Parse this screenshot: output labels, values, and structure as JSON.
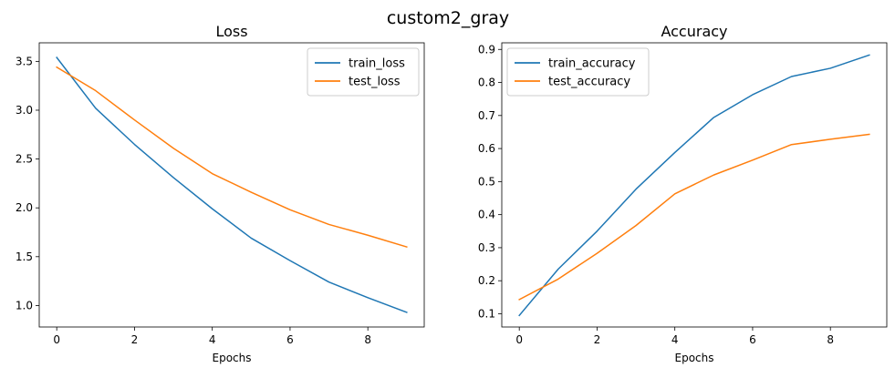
{
  "figure": {
    "title": "custom2_gray"
  },
  "chart_data": [
    {
      "type": "line",
      "title": "Loss",
      "xlabel": "Epochs",
      "ylabel": "",
      "x": [
        0,
        1,
        2,
        3,
        4,
        5,
        6,
        7,
        8,
        9
      ],
      "xlim": [
        -0.45,
        9.45
      ],
      "ylim": [
        0.78,
        3.69
      ],
      "xticks": [
        0,
        2,
        4,
        6,
        8
      ],
      "yticks": [
        1.0,
        1.5,
        2.0,
        2.5,
        3.0,
        3.5
      ],
      "ytick_labels": [
        "1.0",
        "1.5",
        "2.0",
        "2.5",
        "3.0",
        "3.5"
      ],
      "grid": false,
      "legend": "upper-right",
      "series": [
        {
          "name": "train_loss",
          "color": "#1f77b4",
          "values": [
            3.54,
            3.02,
            2.65,
            2.31,
            1.99,
            1.69,
            1.46,
            1.24,
            1.08,
            0.93
          ]
        },
        {
          "name": "test_loss",
          "color": "#ff7f0e",
          "values": [
            3.44,
            3.2,
            2.9,
            2.61,
            2.35,
            2.16,
            1.98,
            1.83,
            1.72,
            1.6
          ]
        }
      ]
    },
    {
      "type": "line",
      "title": "Accuracy",
      "xlabel": "Epochs",
      "ylabel": "",
      "x": [
        0,
        1,
        2,
        3,
        4,
        5,
        6,
        7,
        8,
        9
      ],
      "xlim": [
        -0.45,
        9.45
      ],
      "ylim": [
        0.06,
        0.92
      ],
      "xticks": [
        0,
        2,
        4,
        6,
        8
      ],
      "yticks": [
        0.1,
        0.2,
        0.3,
        0.4,
        0.5,
        0.6,
        0.7,
        0.8,
        0.9
      ],
      "ytick_labels": [
        "0.1",
        "0.2",
        "0.3",
        "0.4",
        "0.5",
        "0.6",
        "0.7",
        "0.8",
        "0.9"
      ],
      "grid": false,
      "legend": "upper-left",
      "series": [
        {
          "name": "train_accuracy",
          "color": "#1f77b4",
          "values": [
            0.095,
            0.235,
            0.35,
            0.477,
            0.588,
            0.694,
            0.763,
            0.818,
            0.843,
            0.883
          ]
        },
        {
          "name": "test_accuracy",
          "color": "#ff7f0e",
          "values": [
            0.143,
            0.205,
            0.283,
            0.367,
            0.463,
            0.52,
            0.565,
            0.612,
            0.628,
            0.643
          ]
        }
      ]
    }
  ]
}
